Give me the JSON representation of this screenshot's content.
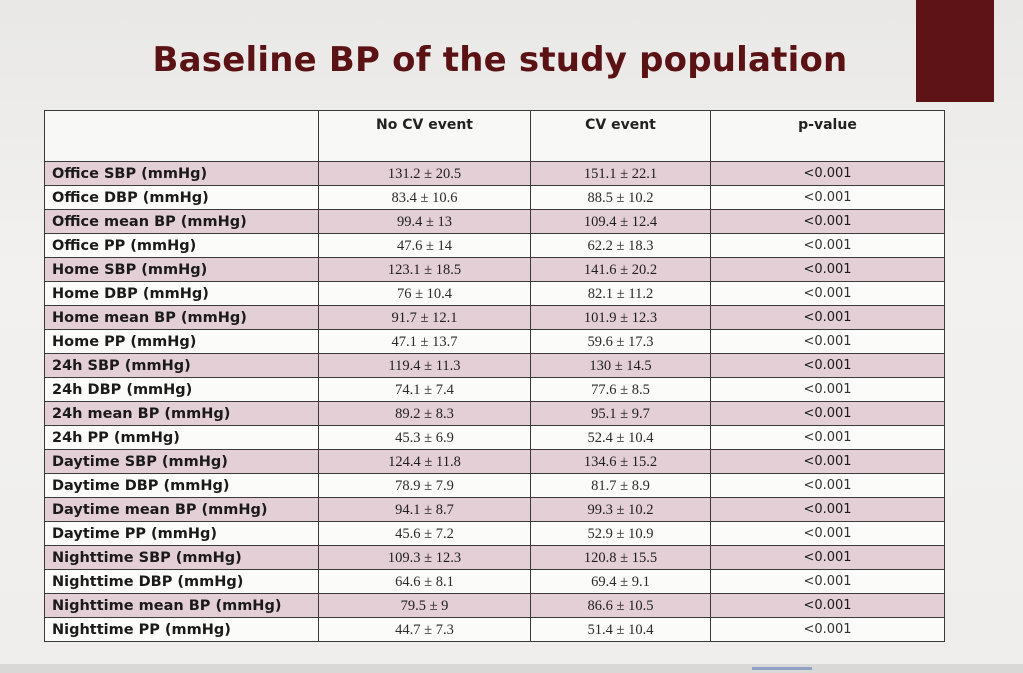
{
  "title": "Baseline BP of the study population",
  "table": {
    "headers": [
      "",
      "No CV event",
      "CV event",
      "p-value"
    ],
    "rows": [
      {
        "label": "Office SBP (mmHg)",
        "no_cv": "131.2 ± 20.5",
        "cv": "151.1 ± 22.1",
        "p": "<0.001"
      },
      {
        "label": "Office DBP (mmHg)",
        "no_cv": "83.4 ± 10.6",
        "cv": "88.5 ± 10.2",
        "p": "<0.001"
      },
      {
        "label": "Office mean BP (mmHg)",
        "no_cv": "99.4 ± 13",
        "cv": "109.4 ± 12.4",
        "p": "<0.001"
      },
      {
        "label": "Office PP (mmHg)",
        "no_cv": "47.6 ± 14",
        "cv": "62.2 ± 18.3",
        "p": "<0.001"
      },
      {
        "label": "Home SBP (mmHg)",
        "no_cv": "123.1 ± 18.5",
        "cv": "141.6 ± 20.2",
        "p": "<0.001"
      },
      {
        "label": "Home DBP (mmHg)",
        "no_cv": "76 ± 10.4",
        "cv": "82.1 ± 11.2",
        "p": "<0.001"
      },
      {
        "label": "Home mean BP (mmHg)",
        "no_cv": "91.7 ± 12.1",
        "cv": "101.9 ± 12.3",
        "p": "<0.001"
      },
      {
        "label": "Home PP (mmHg)",
        "no_cv": "47.1 ± 13.7",
        "cv": "59.6 ± 17.3",
        "p": "<0.001"
      },
      {
        "label": "24h SBP (mmHg)",
        "no_cv": "119.4 ± 11.3",
        "cv": "130 ± 14.5",
        "p": "<0.001"
      },
      {
        "label": "24h DBP (mmHg)",
        "no_cv": "74.1 ± 7.4",
        "cv": "77.6 ± 8.5",
        "p": "<0.001"
      },
      {
        "label": "24h mean BP (mmHg)",
        "no_cv": "89.2 ± 8.3",
        "cv": "95.1 ± 9.7",
        "p": "<0.001"
      },
      {
        "label": "24h PP (mmHg)",
        "no_cv": "45.3 ± 6.9",
        "cv": "52.4 ± 10.4",
        "p": "<0.001"
      },
      {
        "label": "Daytime SBP (mmHg)",
        "no_cv": "124.4 ± 11.8",
        "cv": "134.6 ± 15.2",
        "p": "<0.001"
      },
      {
        "label": "Daytime DBP (mmHg)",
        "no_cv": "78.9 ± 7.9",
        "cv": "81.7 ± 8.9",
        "p": "<0.001"
      },
      {
        "label": "Daytime mean BP (mmHg)",
        "no_cv": "94.1 ± 8.7",
        "cv": "99.3 ± 10.2",
        "p": "<0.001"
      },
      {
        "label": "Daytime PP (mmHg)",
        "no_cv": "45.6 ± 7.2",
        "cv": "52.9 ± 10.9",
        "p": "<0.001"
      },
      {
        "label": "Nighttime SBP (mmHg)",
        "no_cv": "109.3 ± 12.3",
        "cv": "120.8 ± 15.5",
        "p": "<0.001"
      },
      {
        "label": "Nighttime DBP (mmHg)",
        "no_cv": "64.6 ± 8.1",
        "cv": "69.4 ± 9.1",
        "p": "<0.001"
      },
      {
        "label": "Nighttime mean BP (mmHg)",
        "no_cv": "79.5 ± 9",
        "cv": "86.6 ± 10.5",
        "p": "<0.001"
      },
      {
        "label": "Nighttime PP (mmHg)",
        "no_cv": "44.7 ± 7.3",
        "cv": "51.4 ± 10.4",
        "p": "<0.001"
      }
    ]
  },
  "colors": {
    "title": "#5a1214",
    "accent_block": "#5e1417",
    "shaded_row": "#e4cfd6",
    "plain_row": "#fbfbfa"
  }
}
